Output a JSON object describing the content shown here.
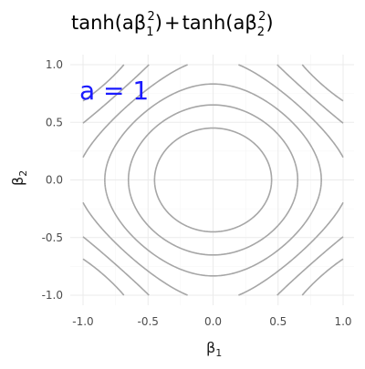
{
  "chart_data": {
    "type": "contour",
    "function": "tanh(a*b1^2) + tanh(a*b2^2)",
    "parameters": {
      "a": 1
    },
    "annotation": "a = 1",
    "xlim": [
      -1.0,
      1.0
    ],
    "ylim": [
      -1.0,
      1.0
    ],
    "xticks": [
      -1.0,
      -0.5,
      0.0,
      0.5,
      1.0
    ],
    "yticks": [
      -1.0,
      -0.5,
      0.0,
      0.5,
      1.0
    ],
    "xtick_labels": [
      "-1.0",
      "-0.5",
      "0.0",
      "0.5",
      "1.0"
    ],
    "ytick_labels": [
      "-1.0",
      "-0.5",
      "0.0",
      "0.5",
      "1.0"
    ],
    "contour_levels": [
      0.2,
      0.4,
      0.6,
      0.8,
      1.0,
      1.2
    ],
    "grid": true,
    "contour_color": "#a6a6a6",
    "annotation_color": "#1a1aff"
  }
}
